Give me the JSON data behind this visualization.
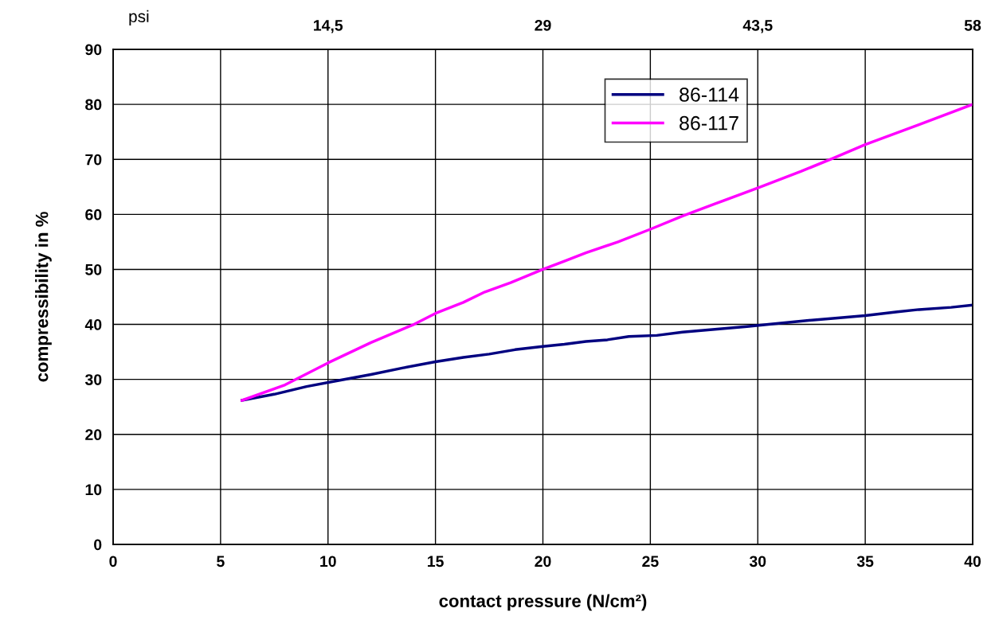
{
  "chart_data": {
    "type": "line",
    "xlabel": "contact pressure (N/cm²)",
    "ylabel": "compressibility in %",
    "x2label": "psi",
    "xlim": [
      0,
      40
    ],
    "xticks": [
      0,
      5,
      10,
      15,
      20,
      25,
      30,
      35,
      40
    ],
    "ylim": [
      0,
      90
    ],
    "yticks": [
      0,
      10,
      20,
      30,
      40,
      50,
      60,
      70,
      80,
      90
    ],
    "x2lim": [
      0,
      58
    ],
    "x2ticks": [
      {
        "value": 14.5,
        "label": "14,5"
      },
      29,
      {
        "value": 43.5,
        "label": "43,5"
      },
      58
    ],
    "grid": true,
    "legend": "top",
    "marker": "none",
    "line_style": "solid",
    "series": [
      {
        "name": "86-114",
        "color": "#000080",
        "x": [
          6,
          7.5,
          9,
          10.5,
          12,
          13.5,
          15,
          16.3,
          17.5,
          18.7,
          20,
          21,
          22,
          23,
          24,
          25.3,
          26.5,
          28,
          29.5,
          30.5,
          32,
          33.5,
          35,
          36.5,
          37.5,
          39,
          40
        ],
        "values": [
          26.2,
          27.3,
          28.7,
          29.8,
          30.9,
          32.1,
          33.2,
          34,
          34.6,
          35.4,
          36,
          36.4,
          36.9,
          37.2,
          37.8,
          38,
          38.6,
          39.1,
          39.6,
          40,
          40.6,
          41.1,
          41.6,
          42.3,
          42.7,
          43.1,
          43.5
        ]
      },
      {
        "name": "86-117",
        "color": "#ff00ff",
        "x": [
          6,
          8,
          10,
          12,
          14,
          15,
          16.3,
          17.3,
          18.5,
          20,
          21,
          22,
          23.5,
          25,
          26.5,
          28,
          30,
          32,
          33.5,
          35,
          37.5,
          40
        ],
        "values": [
          26.2,
          29,
          33,
          36.7,
          40,
          42,
          44,
          45.9,
          47.6,
          50,
          51.5,
          53,
          55,
          57.3,
          59.7,
          61.9,
          64.8,
          67.8,
          70.2,
          72.7,
          76.3,
          80
        ]
      }
    ]
  }
}
